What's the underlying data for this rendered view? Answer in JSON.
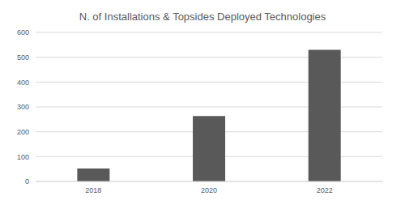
{
  "chart_data": {
    "type": "bar",
    "title": "N. of Installations & Topsides Deployed Technologies",
    "categories": [
      "2018",
      "2020",
      "2022"
    ],
    "values": [
      52,
      263,
      530
    ],
    "color": "#595959",
    "ylim": [
      0,
      600
    ],
    "yticks": [
      0,
      100,
      200,
      300,
      400,
      500,
      600
    ],
    "grid": true
  }
}
